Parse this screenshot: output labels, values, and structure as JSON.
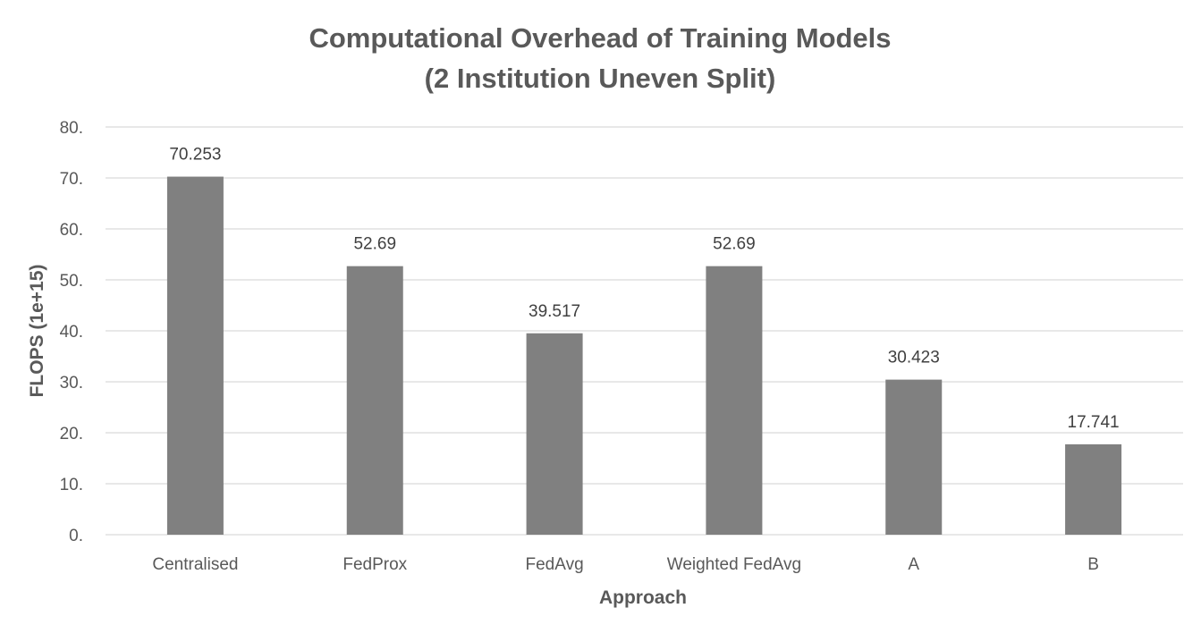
{
  "chart_data": {
    "type": "bar",
    "title_line1": "Computational Overhead of Training Models",
    "title_line2": "(2 Institution Uneven Split)",
    "xlabel": "Approach",
    "ylabel": "FLOPS (1e+15)",
    "categories": [
      "Centralised",
      "FedProx",
      "FedAvg",
      "Weighted FedAvg",
      "A",
      "B"
    ],
    "values": [
      70.253,
      52.69,
      39.517,
      52.69,
      30.423,
      17.741
    ],
    "data_labels": [
      "70.253",
      "52.69",
      "39.517",
      "52.69",
      "30.423",
      "17.741"
    ],
    "ylim": [
      0,
      80
    ],
    "yticks": [
      0,
      10,
      20,
      30,
      40,
      50,
      60,
      70,
      80
    ],
    "ytick_labels": [
      "0.",
      "10.",
      "20.",
      "30.",
      "40.",
      "50.",
      "60.",
      "70.",
      "80."
    ],
    "grid": true,
    "legend": "none",
    "bar_color": "#808080"
  }
}
